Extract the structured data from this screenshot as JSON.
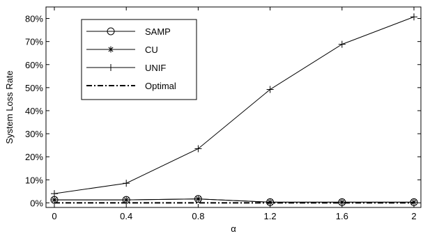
{
  "chart_data": {
    "type": "line",
    "title": "",
    "xlabel": "α",
    "ylabel": "System Loss Rate",
    "x": [
      0,
      0.4,
      0.8,
      1.2,
      1.6,
      2
    ],
    "x_tick_labels": [
      "0",
      "0.4",
      "0.8",
      "1.2",
      "1.6",
      "2"
    ],
    "y_ticks": [
      0,
      0.1,
      0.2,
      0.3,
      0.4,
      0.5,
      0.6,
      0.7,
      0.8
    ],
    "y_tick_labels": [
      "0%",
      "10%",
      "20%",
      "30%",
      "40%",
      "50%",
      "60%",
      "70%",
      "80%"
    ],
    "xlim": [
      0,
      2
    ],
    "ylim": [
      -0.02,
      0.85
    ],
    "grid": false,
    "legend_position": "top-left",
    "series": [
      {
        "name": "SAMP",
        "marker": "circle",
        "line": "solid",
        "values": [
          0.013,
          0.013,
          0.017,
          0.003,
          0.003,
          0.003
        ]
      },
      {
        "name": "CU",
        "marker": "asterisk",
        "line": "solid",
        "values": [
          0.013,
          0.013,
          0.017,
          0.003,
          0.003,
          0.003
        ]
      },
      {
        "name": "UNIF",
        "marker": "plus",
        "line": "solid",
        "values": [
          0.04,
          0.085,
          0.235,
          0.492,
          0.688,
          0.807
        ]
      },
      {
        "name": "Optimal",
        "marker": "none",
        "line": "dash-dot",
        "values": [
          0.0,
          0.0,
          0.0,
          0.0,
          0.0,
          0.0
        ]
      }
    ],
    "colors": {
      "line": "#000000",
      "background": "#ffffff"
    }
  }
}
